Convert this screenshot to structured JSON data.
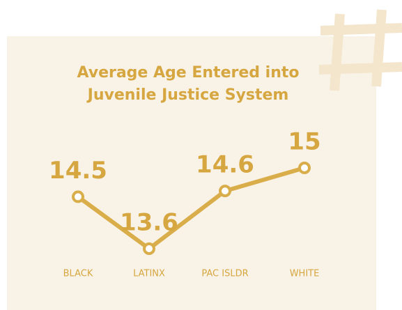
{
  "chart_data": {
    "type": "line",
    "title": [
      "Average Age Entered into",
      "Juvenile Justice System"
    ],
    "categories": [
      "BLACK",
      "LATINX",
      "PAC ISLDR",
      "WHITE"
    ],
    "values": [
      14.5,
      13.6,
      14.6,
      15
    ],
    "color": "#d9ad4a"
  }
}
